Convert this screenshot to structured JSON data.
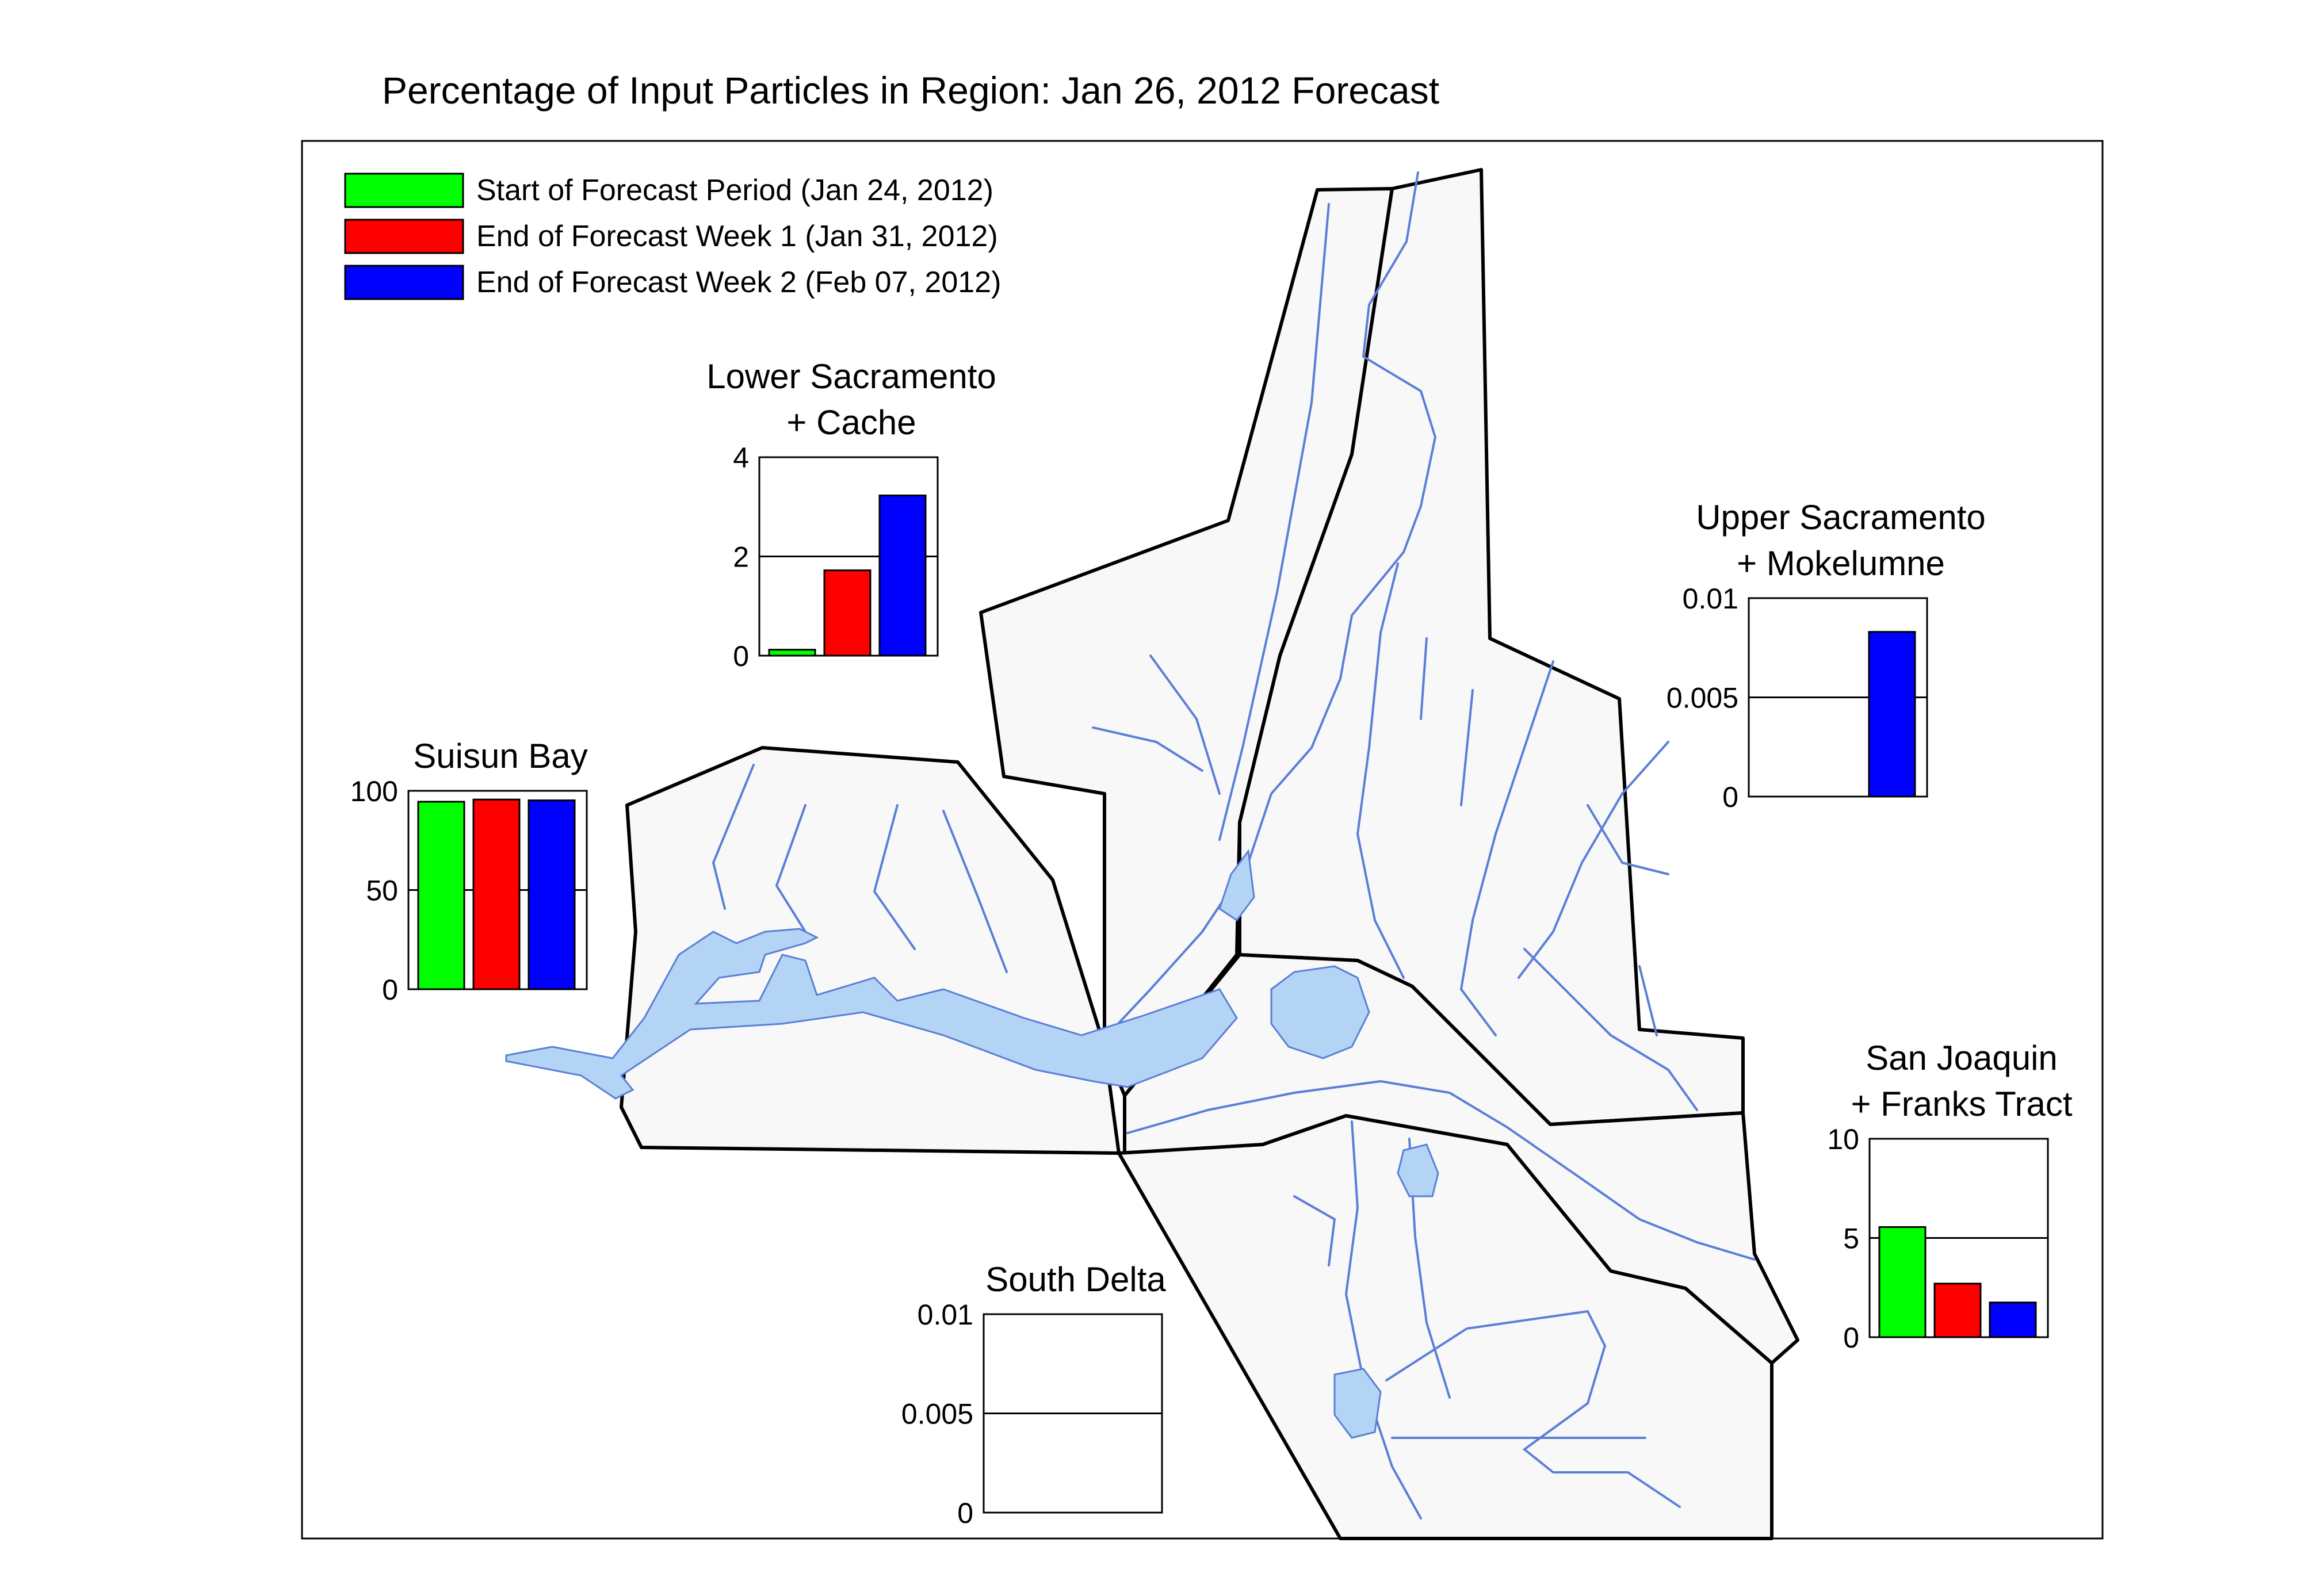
{
  "title": "Percentage of Input Particles in Region: Jan 26, 2012 Forecast",
  "legend": [
    {
      "label": "Start of Forecast Period (Jan 24, 2012)",
      "color": "#00ff00"
    },
    {
      "label": "End of Forecast Week 1 (Jan 31, 2012)",
      "color": "#ff0000"
    },
    {
      "label": "End of Forecast Week 2 (Feb 07, 2012)",
      "color": "#0000ff"
    }
  ],
  "colors": {
    "water": "#b3d4f5",
    "channel": "#5a7fd6",
    "region_fill": "#f8f8f8",
    "boundary": "#000000"
  },
  "chart_data": [
    {
      "type": "bar",
      "title_lines": [
        "Lower Sacramento",
        "+ Cache"
      ],
      "ylim": [
        0,
        4
      ],
      "yticks": [
        "0",
        "2",
        "4"
      ],
      "values": [
        0.12,
        1.72,
        3.23
      ]
    },
    {
      "type": "bar",
      "title_lines": [
        "Suisun Bay"
      ],
      "ylim": [
        0,
        100
      ],
      "yticks": [
        "0",
        "50",
        "100"
      ],
      "values": [
        94.5,
        95.6,
        95.2
      ]
    },
    {
      "type": "bar",
      "title_lines": [
        "Upper Sacramento",
        "+ Mokelumne"
      ],
      "ylim": [
        0,
        0.01
      ],
      "yticks": [
        "0",
        "0.005",
        "0.01"
      ],
      "values": [
        0,
        0,
        0.0083
      ]
    },
    {
      "type": "bar",
      "title_lines": [
        "San Joaquin",
        "+ Franks Tract"
      ],
      "ylim": [
        0,
        10
      ],
      "yticks": [
        "0",
        "5",
        "10"
      ],
      "values": [
        5.55,
        2.7,
        1.75
      ]
    },
    {
      "type": "bar",
      "title_lines": [
        "South Delta"
      ],
      "ylim": [
        0,
        0.01
      ],
      "yticks": [
        "0",
        "0.005",
        "0.01"
      ],
      "values": [
        0,
        0,
        0
      ]
    }
  ]
}
